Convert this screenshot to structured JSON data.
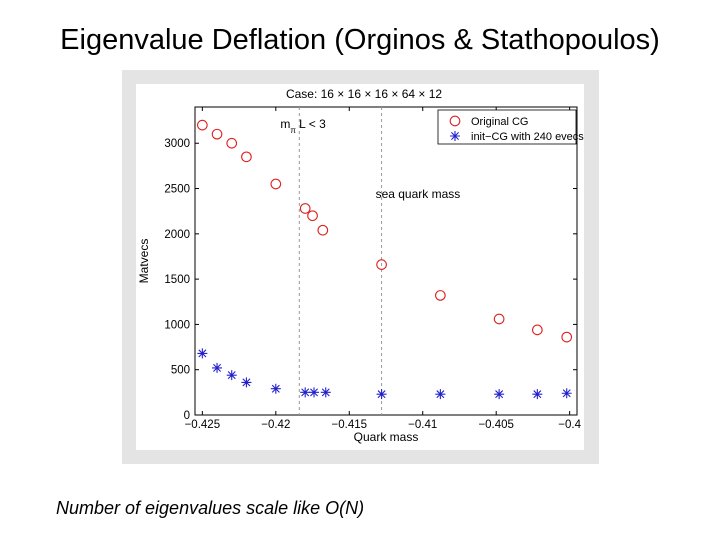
{
  "slide": {
    "title": "Eigenvalue Deflation (Orginos & Stathopoulos)",
    "caption": "Number of eigenvalues scale like O(N)"
  },
  "chart_data": {
    "type": "scatter",
    "title": "Case: 16 × 16 × 16 × 64 × 12",
    "xlabel": "Quark mass",
    "ylabel": "Matvecs",
    "xlim": [
      -0.4255,
      -0.3995
    ],
    "ylim": [
      0,
      3400
    ],
    "xticks": [
      -0.425,
      -0.42,
      -0.415,
      -0.41,
      -0.405,
      -0.4
    ],
    "xtick_labels": [
      "−0.425",
      "−0.42",
      "−0.415",
      "−0.41",
      "−0.405",
      "−0.4"
    ],
    "yticks": [
      0,
      500,
      1000,
      1500,
      2000,
      2500,
      3000
    ],
    "ytick_labels": [
      "0",
      "500",
      "1000",
      "1500",
      "2000",
      "2500",
      "3000"
    ],
    "grid": false,
    "legend_position": "top-right",
    "series": [
      {
        "name": "Original CG",
        "marker": "circle",
        "color": "#dd2222",
        "x": [
          -0.425,
          -0.424,
          -0.423,
          -0.422,
          -0.42,
          -0.418,
          -0.4175,
          -0.4168,
          -0.4128,
          -0.4088,
          -0.4048,
          -0.4022,
          -0.4002
        ],
        "y": [
          3200,
          3100,
          3000,
          2850,
          2550,
          2280,
          2200,
          2040,
          1660,
          1320,
          1060,
          940,
          860
        ]
      },
      {
        "name": "init−CG with 240 evecs",
        "marker": "asterisk",
        "color": "#2222cc",
        "x": [
          -0.425,
          -0.424,
          -0.423,
          -0.422,
          -0.42,
          -0.418,
          -0.4174,
          -0.4166,
          -0.4128,
          -0.4088,
          -0.4048,
          -0.4022,
          -0.4002
        ],
        "y": [
          680,
          520,
          440,
          360,
          290,
          250,
          250,
          250,
          230,
          230,
          230,
          230,
          240
        ]
      }
    ],
    "reference_lines": [
      {
        "x": -0.4184,
        "label": "m",
        "label_sub": "π",
        "label_rest": "L < 3",
        "style": "dashed"
      },
      {
        "x": -0.4128,
        "label": "sea quark mass",
        "style": "dashed"
      }
    ]
  }
}
